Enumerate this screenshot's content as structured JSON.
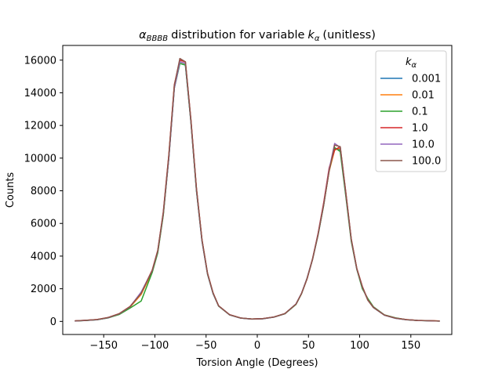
{
  "chart_data": {
    "type": "line",
    "title": {
      "symbol": "α",
      "symbol_sub": "BBBB",
      "text": "distribution for variable",
      "var": "k",
      "var_sub": "α",
      "unit": "(unitless)"
    },
    "xlabel": "Torsion Angle (Degrees)",
    "ylabel": "Counts",
    "xlim": [
      -190,
      190
    ],
    "ylim": [
      -800,
      16900
    ],
    "xticks": [
      -150,
      -100,
      -50,
      0,
      50,
      100,
      150
    ],
    "xtick_labels": [
      "−150",
      "−100",
      "−50",
      "0",
      "50",
      "100",
      "150"
    ],
    "yticks": [
      0,
      2000,
      4000,
      6000,
      8000,
      10000,
      12000,
      14000,
      16000
    ],
    "ytick_labels": [
      "0",
      "2000",
      "4000",
      "6000",
      "8000",
      "10000",
      "12000",
      "14000",
      "16000"
    ],
    "grid": false,
    "legend": {
      "position": "top-right",
      "title_var": "k",
      "title_sub": "α"
    },
    "x": [
      -178.2,
      -167.4,
      -156.6,
      -145.8,
      -135,
      -124.2,
      -113.4,
      -102.6,
      -97.2,
      -91.8,
      -86.4,
      -81,
      -75.6,
      -70.2,
      -64.8,
      -59.4,
      -54,
      -48.6,
      -43.2,
      -37.8,
      -27,
      -16.2,
      -5.4,
      5.4,
      16.2,
      27,
      37.8,
      43.2,
      48.6,
      54,
      59.4,
      64.8,
      70.2,
      75.6,
      81,
      86.4,
      91.8,
      97.2,
      102.6,
      108,
      113.4,
      124.2,
      135,
      145.8,
      156.6,
      167.4,
      178.2
    ],
    "series": [
      {
        "name": "0.001",
        "color": "#1f77b4",
        "values": [
          20,
          60,
          100,
          220,
          450,
          900,
          1700,
          3100,
          4300,
          6600,
          10000,
          14300,
          15800,
          15700,
          12200,
          8000,
          4900,
          2900,
          1700,
          950,
          400,
          200,
          140,
          160,
          260,
          470,
          1050,
          1700,
          2600,
          3800,
          5300,
          7100,
          9300,
          10600,
          10500,
          7800,
          5000,
          3200,
          2100,
          1300,
          850,
          380,
          190,
          100,
          60,
          40,
          20
        ]
      },
      {
        "name": "0.01",
        "color": "#ff7f0e",
        "values": [
          30,
          65,
          110,
          230,
          460,
          880,
          1650,
          3050,
          4250,
          6550,
          10100,
          14400,
          15900,
          15800,
          12300,
          8100,
          5000,
          2950,
          1750,
          960,
          410,
          210,
          150,
          170,
          270,
          480,
          1060,
          1700,
          2600,
          3850,
          5350,
          7150,
          9200,
          10500,
          10600,
          7900,
          5000,
          3250,
          2100,
          1300,
          860,
          390,
          200,
          110,
          65,
          45,
          25
        ]
      },
      {
        "name": "0.1",
        "color": "#2ca02c",
        "values": [
          25,
          60,
          105,
          210,
          420,
          820,
          1250,
          3000,
          4200,
          6500,
          10000,
          14300,
          15800,
          15700,
          12200,
          8000,
          4950,
          2900,
          1720,
          940,
          400,
          205,
          145,
          165,
          265,
          470,
          1040,
          1690,
          2650,
          3800,
          5300,
          7100,
          9250,
          10650,
          10400,
          7700,
          4900,
          3200,
          2000,
          1400,
          900,
          400,
          220,
          105,
          60,
          40,
          20
        ]
      },
      {
        "name": "1.0",
        "color": "#d62728",
        "values": [
          35,
          70,
          115,
          240,
          470,
          920,
          1750,
          3150,
          4350,
          6700,
          10200,
          14500,
          16000,
          15900,
          12350,
          8150,
          5000,
          2950,
          1750,
          960,
          410,
          210,
          150,
          170,
          270,
          480,
          1060,
          1710,
          2620,
          3820,
          5400,
          7250,
          9400,
          10500,
          10700,
          7950,
          5050,
          3250,
          2150,
          1320,
          870,
          390,
          200,
          110,
          60,
          45,
          25
        ]
      },
      {
        "name": "10.0",
        "color": "#9467bd",
        "values": [
          28,
          62,
          108,
          225,
          455,
          900,
          1800,
          3100,
          4300,
          6600,
          10000,
          14300,
          15900,
          15800,
          12250,
          8050,
          4950,
          2920,
          1730,
          950,
          405,
          205,
          145,
          165,
          265,
          480,
          1070,
          1720,
          2640,
          3830,
          5350,
          7150,
          9300,
          10900,
          10650,
          7850,
          5000,
          3220,
          2100,
          1310,
          860,
          385,
          195,
          105,
          62,
          42,
          22
        ]
      },
      {
        "name": "100.0",
        "color": "#8c564b",
        "values": [
          32,
          68,
          112,
          235,
          465,
          910,
          1720,
          3120,
          4320,
          6650,
          10150,
          14450,
          16100,
          15900,
          12300,
          8120,
          4980,
          2940,
          1740,
          955,
          408,
          208,
          148,
          168,
          268,
          478,
          1055,
          1705,
          2610,
          3810,
          5320,
          7120,
          9200,
          10800,
          10700,
          7900,
          5020,
          3230,
          2120,
          1305,
          855,
          388,
          198,
          108,
          63,
          43,
          23
        ]
      }
    ]
  }
}
